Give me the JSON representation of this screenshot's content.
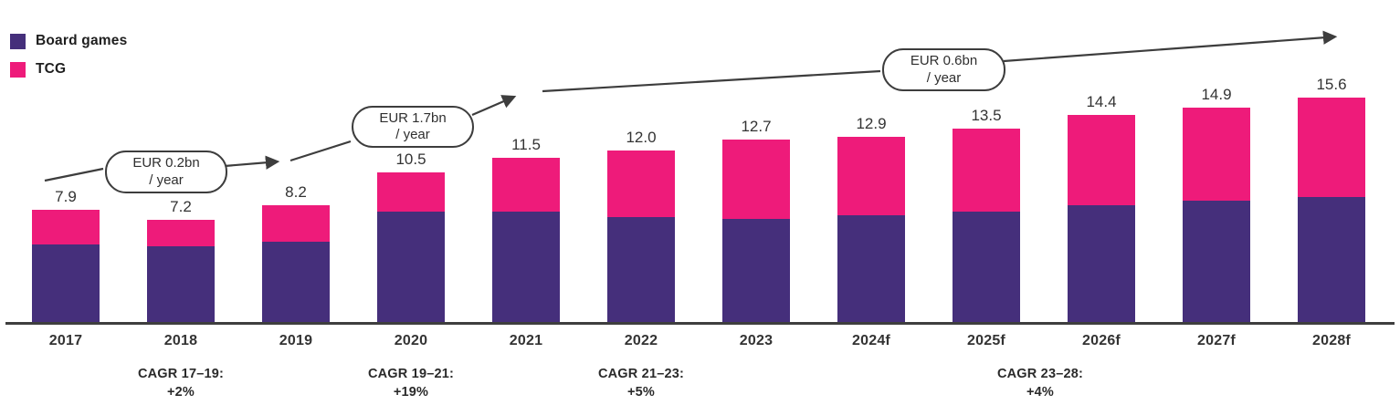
{
  "legend": {
    "items": [
      {
        "label": "Board games",
        "color": "#452F7B"
      },
      {
        "label": "TCG",
        "color": "#EE1B7A"
      }
    ]
  },
  "chart_data": {
    "type": "bar",
    "stacked": true,
    "title": "",
    "xlabel": "",
    "ylabel": "",
    "ylim": [
      0,
      16
    ],
    "grid": false,
    "legend_position": "top-left",
    "categories": [
      "2017",
      "2018",
      "2019",
      "2020",
      "2021",
      "2022",
      "2023",
      "2024f",
      "2025f",
      "2026f",
      "2027f",
      "2028f"
    ],
    "series": [
      {
        "name": "Board games",
        "color": "#452F7B",
        "values": [
          5.5,
          5.4,
          5.7,
          7.8,
          7.8,
          7.4,
          7.3,
          7.5,
          7.8,
          8.2,
          8.5,
          8.8
        ]
      },
      {
        "name": "TCG",
        "color": "#EE1B7A",
        "values": [
          2.4,
          1.8,
          2.5,
          2.7,
          3.7,
          4.6,
          5.4,
          5.4,
          5.7,
          6.2,
          6.4,
          6.8
        ]
      }
    ],
    "totals": [
      "7.9",
      "7.2",
      "8.2",
      "10.5",
      "11.5",
      "12.0",
      "12.7",
      "12.9",
      "13.5",
      "14.4",
      "14.9",
      "15.6"
    ],
    "annotations": {
      "callouts": [
        {
          "line1": "EUR 0.2bn",
          "line2": "/ year"
        },
        {
          "line1": "EUR 1.7bn",
          "line2": "/ year"
        },
        {
          "line1": "EUR 0.6bn",
          "line2": "/ year"
        }
      ],
      "cagr": [
        {
          "line1": "CAGR 17–19:",
          "line2": "+2%"
        },
        {
          "line1": "CAGR 19–21:",
          "line2": "+19%"
        },
        {
          "line1": "CAGR 21–23:",
          "line2": "+5%"
        },
        {
          "line1": "CAGR 23–28:",
          "line2": "+4%"
        }
      ]
    },
    "colors": {
      "axis": "#3E3E3E",
      "arrow": "#3D3D3D",
      "label_text": "#333333"
    }
  }
}
